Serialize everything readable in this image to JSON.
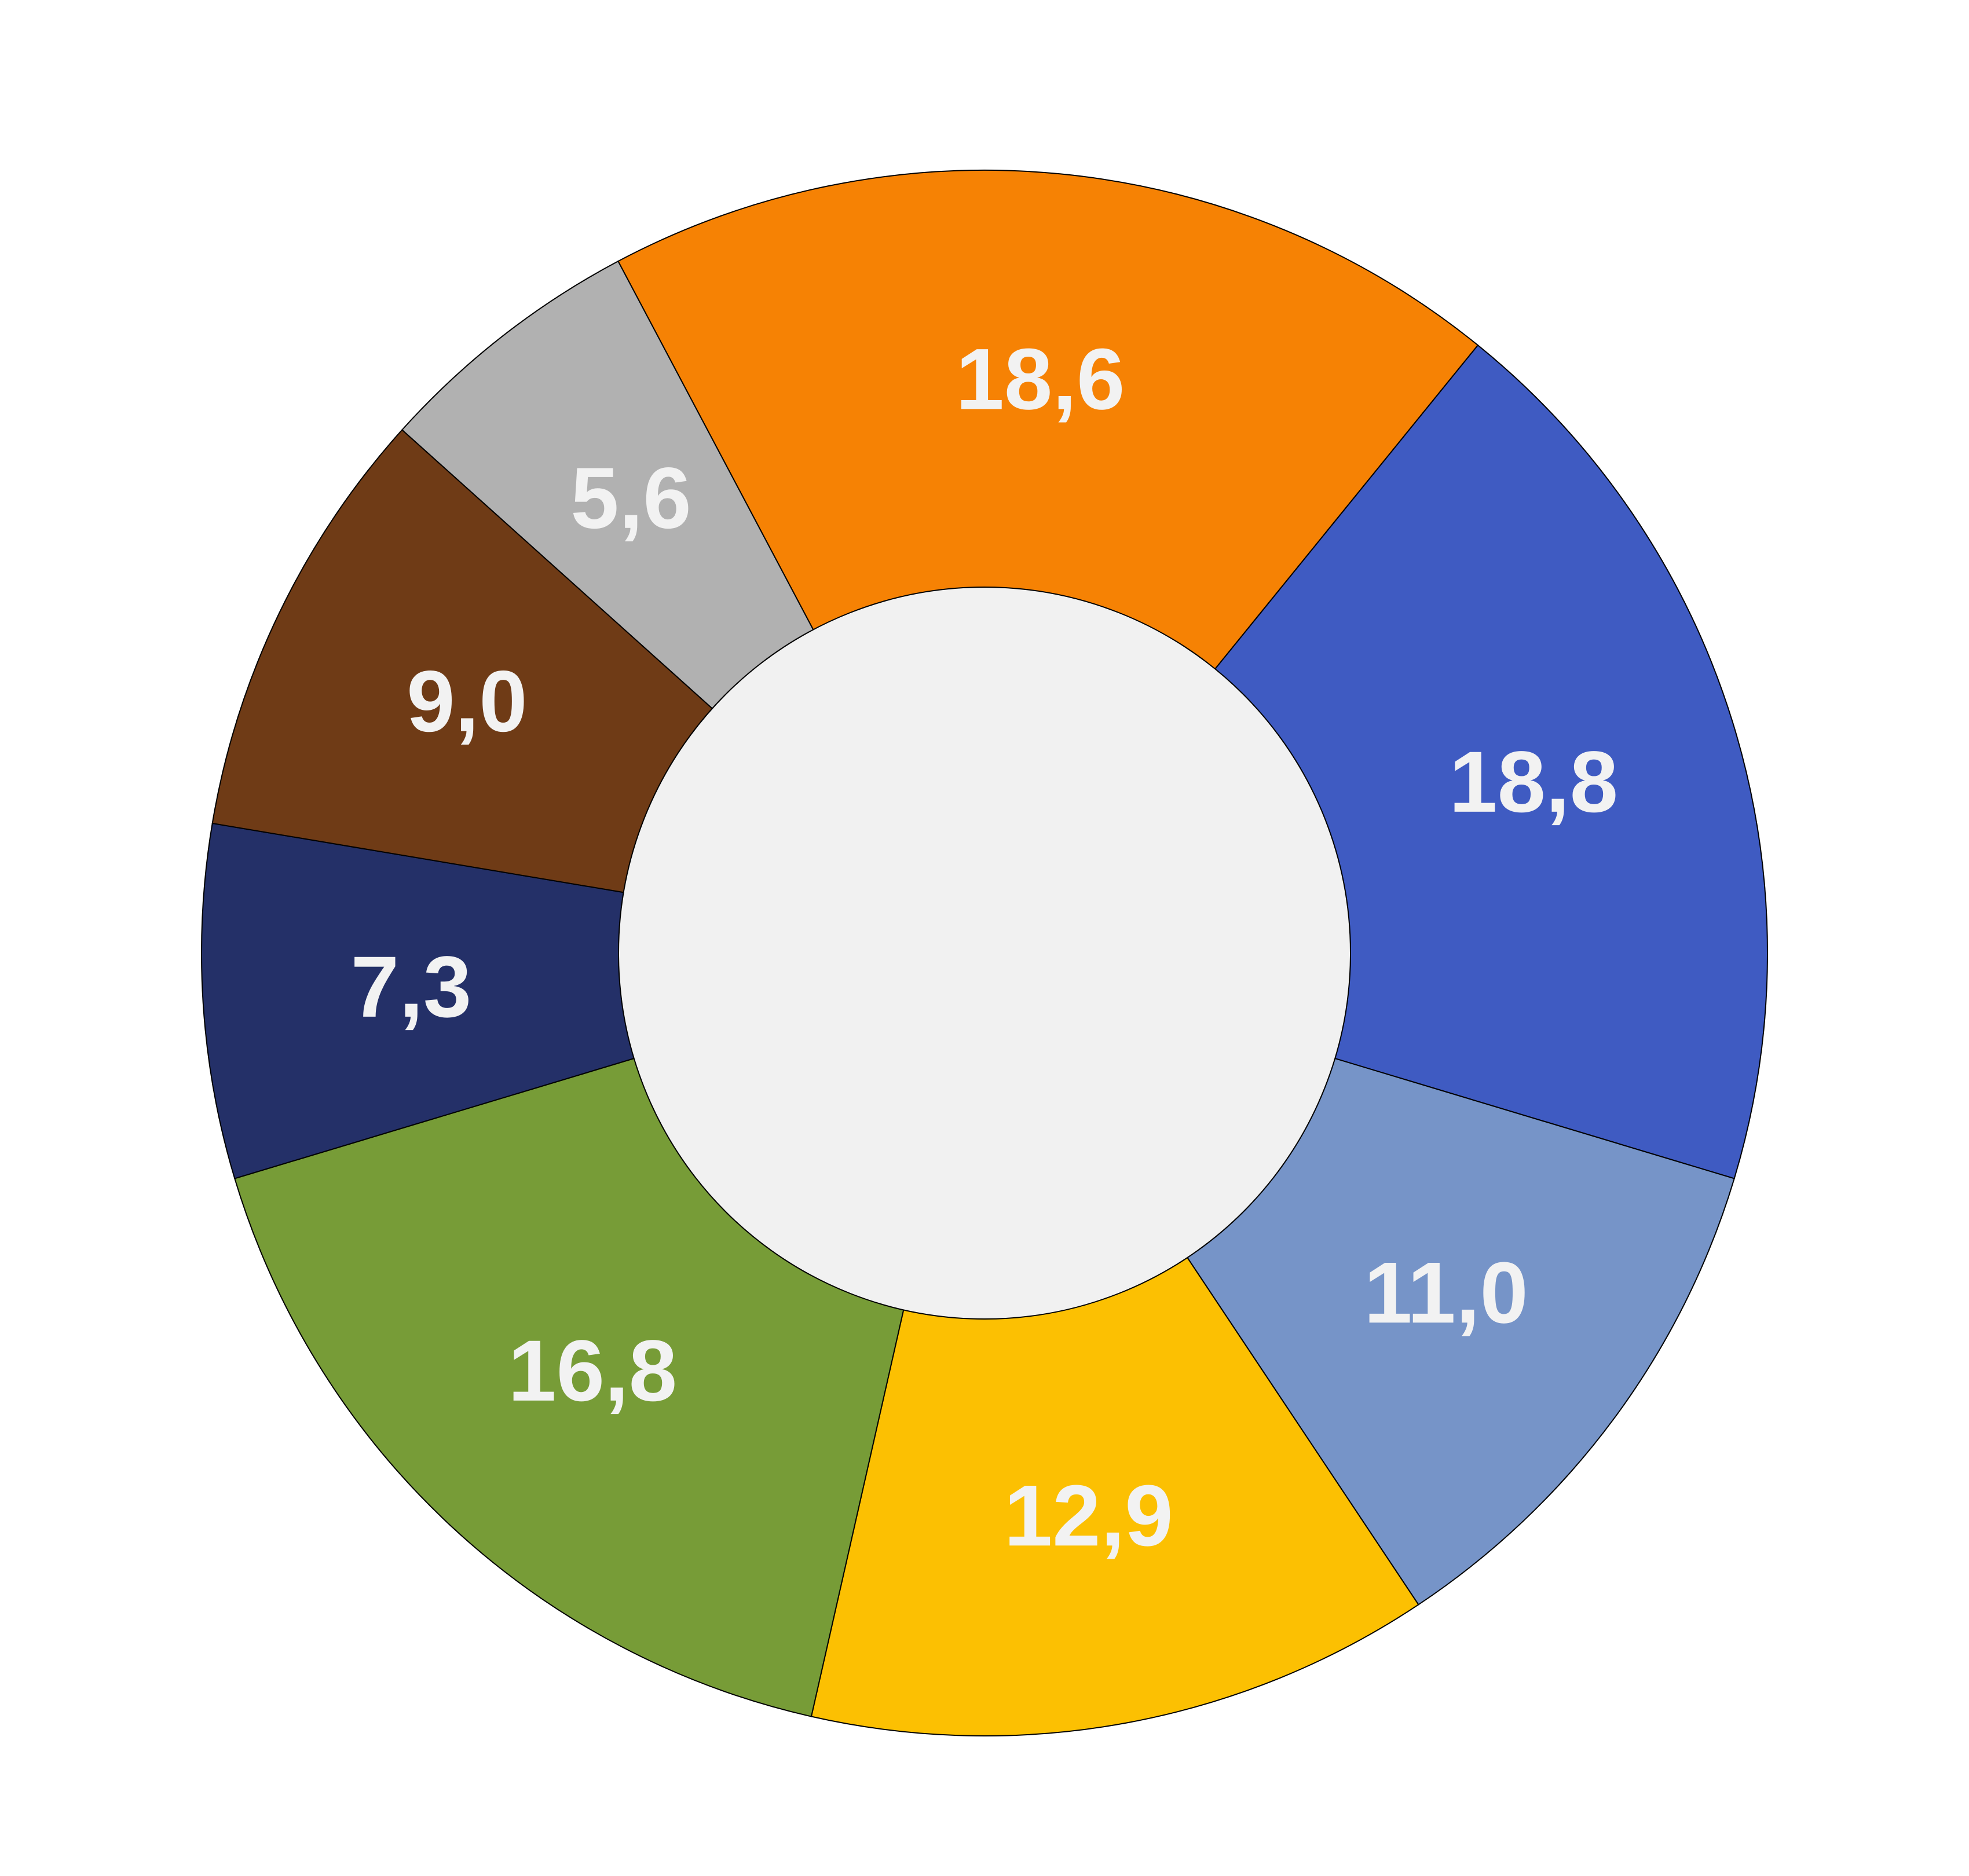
{
  "chart_data": {
    "type": "donut",
    "values": [
      18.6,
      18.8,
      11.0,
      12.9,
      16.8,
      7.3,
      9.0,
      5.6
    ],
    "value_labels": [
      "18,6",
      "18,8",
      "11,0",
      "12,9",
      "16,8",
      "7,3",
      "9,0",
      "5,6"
    ],
    "colors": [
      "#f68204",
      "#3f5bc2",
      "#7694c8",
      "#fcc002",
      "#779c37",
      "#243068",
      "#6f3b16",
      "#b1b1b1"
    ]
  }
}
